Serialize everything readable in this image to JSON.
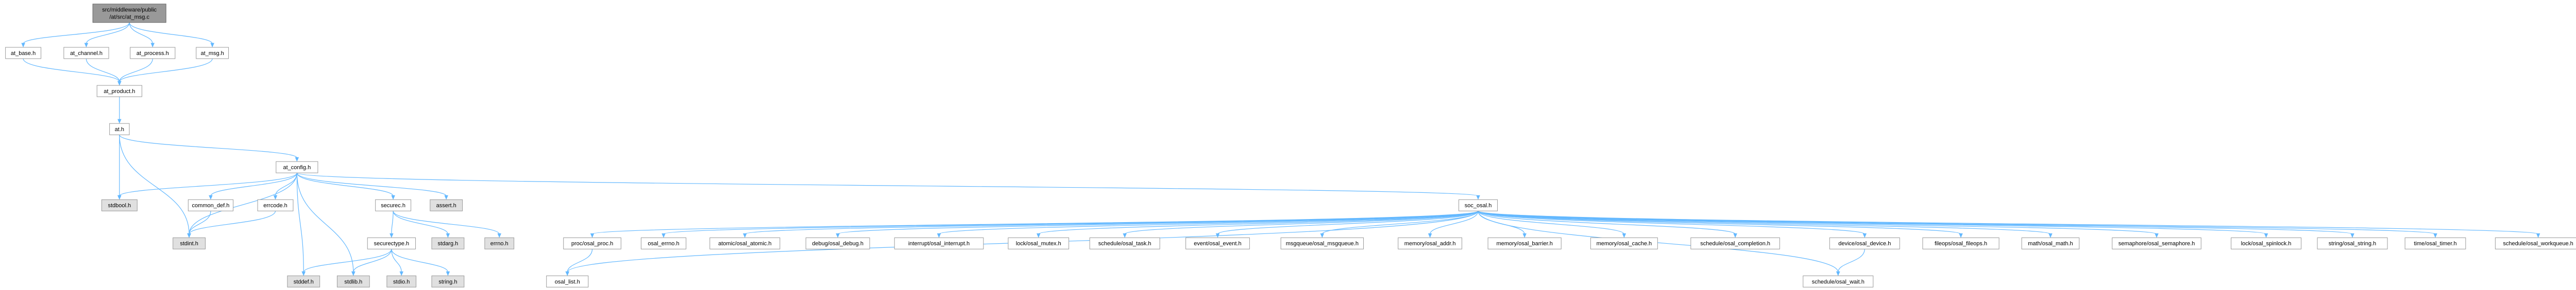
{
  "nodes": [
    {
      "label": [
        "src/middleware/public",
        "/at/src/at_msg.c"
      ]
    },
    {
      "label": "at_base.h"
    },
    {
      "label": "at_channel.h"
    },
    {
      "label": "at_process.h"
    },
    {
      "label": "at_msg.h"
    },
    {
      "label": "at_product.h"
    },
    {
      "label": "at.h"
    },
    {
      "label": "at_config.h"
    },
    {
      "label": "stdbool.h"
    },
    {
      "label": "common_def.h"
    },
    {
      "label": "errcode.h"
    },
    {
      "label": "securec.h"
    },
    {
      "label": "assert.h"
    },
    {
      "label": "soc_osal.h"
    },
    {
      "label": "stdint.h"
    },
    {
      "label": "securectype.h"
    },
    {
      "label": "stdarg.h"
    },
    {
      "label": "errno.h"
    },
    {
      "label": "stddef.h"
    },
    {
      "label": "stdlib.h"
    },
    {
      "label": "stdio.h"
    },
    {
      "label": "string.h"
    },
    {
      "label": "proc/osal_proc.h"
    },
    {
      "label": "osal_errno.h"
    },
    {
      "label": "atomic/osal_atomic.h"
    },
    {
      "label": "debug/osal_debug.h"
    },
    {
      "label": "interrupt/osal_interrupt.h"
    },
    {
      "label": "lock/osal_mutex.h"
    },
    {
      "label": "schedule/osal_task.h"
    },
    {
      "label": "event/osal_event.h"
    },
    {
      "label": "msgqueue/osal_msgqueue.h"
    },
    {
      "label": "memory/osal_addr.h"
    },
    {
      "label": "memory/osal_barrier.h"
    },
    {
      "label": "memory/osal_cache.h"
    },
    {
      "label": "schedule/osal_completion.h"
    },
    {
      "label": "device/osal_device.h"
    },
    {
      "label": "fileops/osal_fileops.h"
    },
    {
      "label": "math/osal_math.h"
    },
    {
      "label": "semaphore/osal_semaphore.h"
    },
    {
      "label": "lock/osal_spinlock.h"
    },
    {
      "label": "string/osal_string.h"
    },
    {
      "label": "time/osal_timer.h"
    },
    {
      "label": "schedule/osal_workqueue.h"
    },
    {
      "label": "osal_list.h"
    },
    {
      "label": "schedule/osal_wait.h"
    }
  ]
}
